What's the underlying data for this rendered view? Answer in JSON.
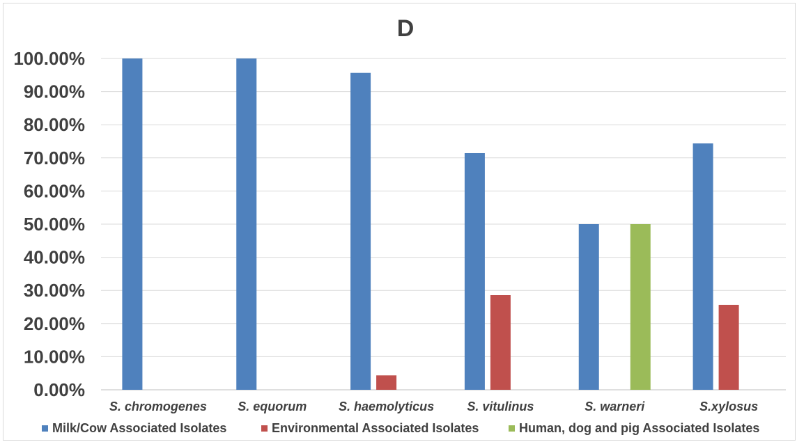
{
  "chart_data": {
    "type": "bar",
    "title": "D",
    "categories": [
      "S. chromogenes",
      "S. equorum",
      "S. haemolyticus",
      "S. vitulinus",
      "S. warneri",
      "S.xylosus"
    ],
    "series": [
      {
        "name": "Milk/Cow Associated Isolates",
        "color": "#4f81bd",
        "values": [
          100.0,
          100.0,
          95.65,
          71.43,
          50.0,
          74.36
        ]
      },
      {
        "name": "Environmental Associated Isolates",
        "color": "#c0504d",
        "values": [
          0.0,
          0.0,
          4.35,
          28.57,
          0.0,
          25.64
        ]
      },
      {
        "name": "Human, dog and pig Associated Isolates",
        "color": "#9bbb59",
        "values": [
          0.0,
          0.0,
          0.0,
          0.0,
          50.0,
          0.0
        ]
      }
    ],
    "ylim": [
      0,
      100
    ],
    "yticks": [
      "0.00%",
      "10.00%",
      "20.00%",
      "30.00%",
      "40.00%",
      "50.00%",
      "60.00%",
      "70.00%",
      "80.00%",
      "90.00%",
      "100.00%"
    ],
    "grid": true,
    "legend_position": "bottom"
  }
}
